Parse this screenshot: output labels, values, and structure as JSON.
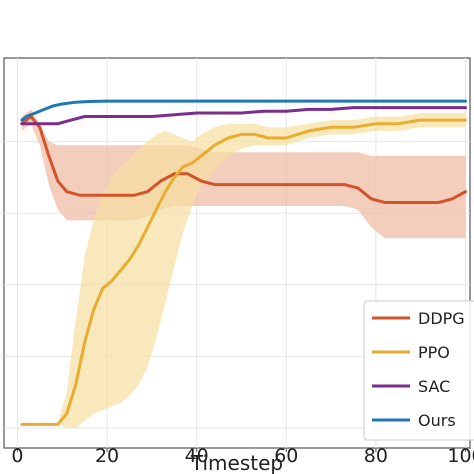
{
  "chart_data": {
    "type": "line",
    "xlabel": "Timestep",
    "ylabel": "",
    "xlim": [
      -3,
      101
    ],
    "ylim": [
      0,
      1
    ],
    "xticks": [
      0,
      20,
      40,
      60,
      80,
      100
    ],
    "xtick_labels": [
      "0",
      "20",
      "40",
      "60",
      "80",
      "100"
    ],
    "grid": true,
    "legend_position": "bottom-right",
    "series": [
      {
        "name": "DDPG",
        "color": "#d4532a",
        "band_color": "#f0b9a0",
        "x": [
          1,
          3,
          5,
          7,
          9,
          11,
          14,
          17,
          20,
          23,
          26,
          29,
          32,
          35,
          38,
          41,
          44,
          47,
          50,
          55,
          60,
          65,
          70,
          73,
          76,
          79,
          82,
          85,
          88,
          91,
          94,
          97,
          100
        ],
        "y": [
          0.85,
          0.87,
          0.84,
          0.76,
          0.69,
          0.66,
          0.65,
          0.65,
          0.65,
          0.65,
          0.65,
          0.66,
          0.69,
          0.71,
          0.71,
          0.69,
          0.68,
          0.68,
          0.68,
          0.68,
          0.68,
          0.68,
          0.68,
          0.68,
          0.67,
          0.64,
          0.63,
          0.63,
          0.63,
          0.63,
          0.63,
          0.64,
          0.66
        ],
        "lower": [
          0.83,
          0.85,
          0.79,
          0.68,
          0.61,
          0.58,
          0.58,
          0.58,
          0.58,
          0.58,
          0.58,
          0.59,
          0.61,
          0.62,
          0.62,
          0.62,
          0.62,
          0.62,
          0.62,
          0.62,
          0.62,
          0.62,
          0.62,
          0.62,
          0.61,
          0.56,
          0.53,
          0.53,
          0.53,
          0.53,
          0.53,
          0.53,
          0.53
        ],
        "upper": [
          0.87,
          0.89,
          0.85,
          0.8,
          0.79,
          0.79,
          0.79,
          0.79,
          0.79,
          0.79,
          0.79,
          0.79,
          0.79,
          0.79,
          0.79,
          0.78,
          0.77,
          0.77,
          0.77,
          0.77,
          0.77,
          0.77,
          0.77,
          0.77,
          0.77,
          0.76,
          0.76,
          0.76,
          0.76,
          0.76,
          0.76,
          0.76,
          0.76
        ]
      },
      {
        "name": "PPO",
        "color": "#e8ad2e",
        "band_color": "#f6dea0",
        "x": [
          1,
          3,
          6,
          9,
          11,
          13,
          15,
          17,
          19,
          21,
          23,
          25,
          27,
          29,
          31,
          33,
          35,
          37,
          39,
          41,
          44,
          47,
          50,
          53,
          56,
          60,
          65,
          70,
          75,
          80,
          85,
          90,
          95,
          100
        ],
        "y": [
          0.01,
          0.01,
          0.01,
          0.01,
          0.04,
          0.12,
          0.24,
          0.33,
          0.39,
          0.41,
          0.44,
          0.47,
          0.51,
          0.56,
          0.61,
          0.66,
          0.7,
          0.73,
          0.74,
          0.76,
          0.79,
          0.81,
          0.82,
          0.82,
          0.81,
          0.81,
          0.83,
          0.84,
          0.84,
          0.85,
          0.85,
          0.86,
          0.86,
          0.86
        ],
        "lower": [
          0.01,
          0.01,
          0.01,
          0.01,
          0.0,
          0.0,
          0.02,
          0.04,
          0.05,
          0.06,
          0.07,
          0.09,
          0.12,
          0.17,
          0.25,
          0.35,
          0.45,
          0.55,
          0.62,
          0.68,
          0.72,
          0.76,
          0.78,
          0.79,
          0.79,
          0.79,
          0.81,
          0.82,
          0.82,
          0.83,
          0.83,
          0.84,
          0.84,
          0.84
        ],
        "upper": [
          0.01,
          0.01,
          0.01,
          0.01,
          0.1,
          0.3,
          0.48,
          0.58,
          0.65,
          0.7,
          0.73,
          0.75,
          0.78,
          0.8,
          0.82,
          0.83,
          0.82,
          0.81,
          0.8,
          0.82,
          0.84,
          0.85,
          0.85,
          0.85,
          0.84,
          0.84,
          0.85,
          0.86,
          0.86,
          0.87,
          0.87,
          0.88,
          0.88,
          0.88
        ]
      },
      {
        "name": "SAC",
        "color": "#7b2d8e",
        "x": [
          1,
          3,
          6,
          9,
          12,
          15,
          18,
          21,
          25,
          30,
          35,
          40,
          45,
          50,
          55,
          60,
          65,
          70,
          75,
          80,
          85,
          90,
          95,
          100
        ],
        "y": [
          0.85,
          0.85,
          0.85,
          0.85,
          0.86,
          0.87,
          0.87,
          0.87,
          0.87,
          0.87,
          0.875,
          0.88,
          0.88,
          0.88,
          0.885,
          0.885,
          0.89,
          0.89,
          0.895,
          0.895,
          0.895,
          0.895,
          0.895,
          0.895
        ]
      },
      {
        "name": "Ours",
        "color": "#1f77b4",
        "x": [
          1,
          2,
          4,
          6,
          8,
          10,
          13,
          16,
          20,
          25,
          30,
          35,
          40,
          50,
          60,
          70,
          80,
          90,
          100
        ],
        "y": [
          0.86,
          0.87,
          0.88,
          0.89,
          0.9,
          0.905,
          0.91,
          0.912,
          0.913,
          0.913,
          0.913,
          0.913,
          0.913,
          0.913,
          0.913,
          0.913,
          0.913,
          0.913,
          0.913
        ]
      }
    ]
  }
}
